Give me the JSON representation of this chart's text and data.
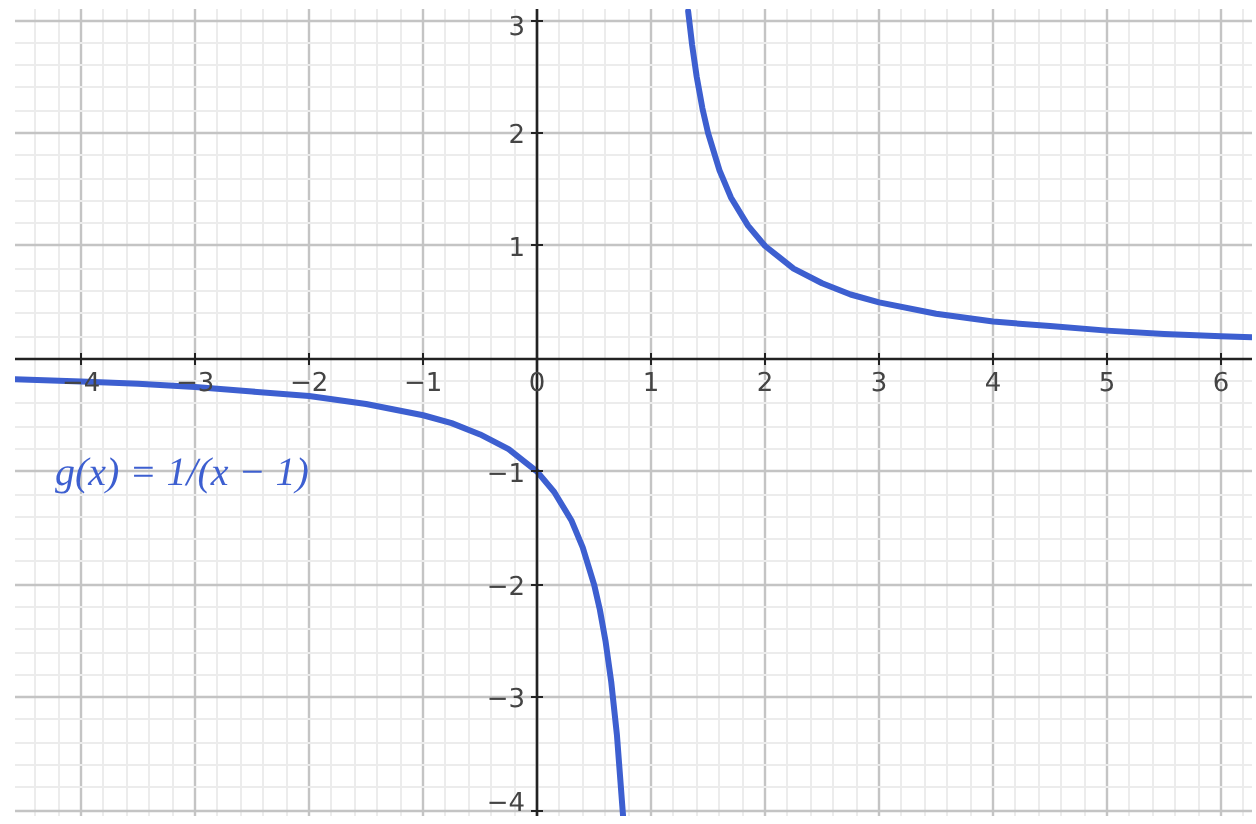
{
  "chart_data": {
    "type": "line",
    "series": [
      {
        "name": "g(x) = 1/(x − 1)",
        "color": "#3d5fd0",
        "x": [
          -4.58,
          -4,
          -3.5,
          -3,
          -2.5,
          -2,
          -1.5,
          -1,
          -0.75,
          -0.5,
          -0.25,
          0,
          0.15,
          0.3,
          0.4,
          0.5,
          0.55,
          0.6,
          0.65,
          0.7,
          0.754,
          1,
          1.325,
          1.36,
          1.4,
          1.45,
          1.5,
          1.6,
          1.7,
          1.85,
          2,
          2.25,
          2.5,
          2.75,
          3,
          3.5,
          4,
          4.5,
          5,
          5.5,
          6,
          6.28
        ],
        "values": [
          -0.18,
          -0.2,
          -0.22,
          -0.25,
          -0.29,
          -0.33,
          -0.4,
          -0.5,
          -0.57,
          -0.67,
          -0.8,
          -1,
          -1.18,
          -1.43,
          -1.67,
          -2,
          -2.22,
          -2.5,
          -2.86,
          -3.33,
          -4.05,
          null,
          3.08,
          2.78,
          2.5,
          2.22,
          2,
          1.67,
          1.43,
          1.18,
          1,
          0.8,
          0.67,
          0.57,
          0.5,
          0.4,
          0.33,
          0.29,
          0.25,
          0.22,
          0.2,
          0.19
        ]
      }
    ],
    "xlim": [
      -4.58,
      6.28
    ],
    "ylim": [
      -4.06,
      3.1
    ],
    "xticks": [
      {
        "value": -4,
        "label": "−4"
      },
      {
        "value": -3,
        "label": "−3"
      },
      {
        "value": -2,
        "label": "−2"
      },
      {
        "value": -1,
        "label": "−1"
      },
      0,
      1,
      2,
      3,
      4,
      5,
      6
    ],
    "yticks": [
      {
        "value": -4,
        "label": "−4"
      },
      {
        "value": -3,
        "label": "−3"
      },
      {
        "value": -2,
        "label": "−2"
      },
      {
        "value": -1,
        "label": "−1"
      },
      1,
      2,
      3
    ],
    "grid": true
  }
}
